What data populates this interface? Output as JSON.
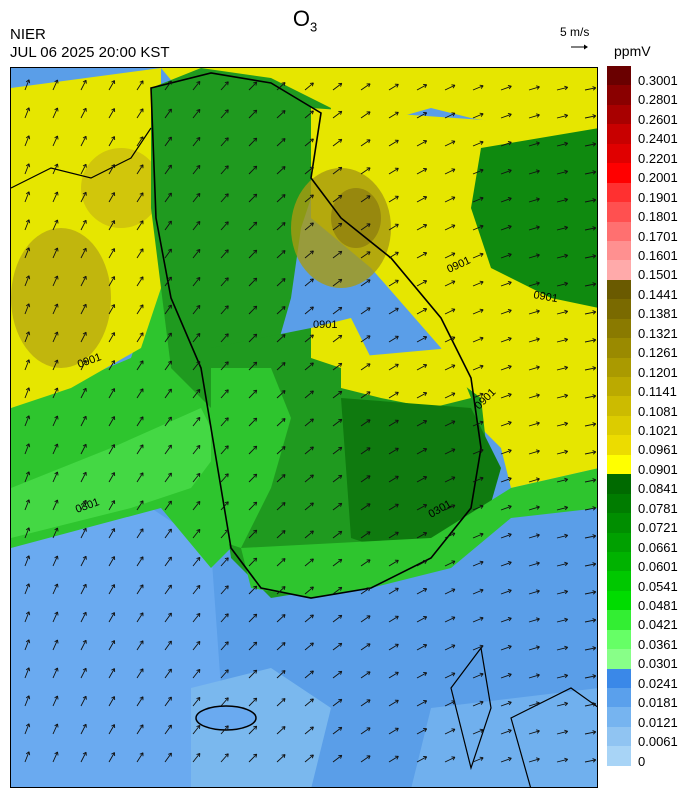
{
  "header": {
    "title_main": "O",
    "title_sub": "3",
    "org": "NIER",
    "datetime": "JUL 06 2025 20:00 KST",
    "wind_scale_label": "5 m/s",
    "units": "ppmV"
  },
  "map": {
    "region": "Korean Peninsula",
    "contour_labels": [
      "0901",
      "0901",
      "0901",
      "0901",
      "0301",
      "0301",
      "0901"
    ],
    "background_colors": {
      "sea_low": "#4a90e2",
      "sea_very_low": "#7ab8ee",
      "land_green": "#1f9a1f",
      "dark_green": "#0f7a0f",
      "yellow": "#e6e600",
      "olive": "#9a8a1a"
    },
    "wind_arrow_icon": "wind-arrow-icon"
  },
  "colorbar": {
    "labels": [
      "0.3001",
      "0.2801",
      "0.2601",
      "0.2401",
      "0.2201",
      "0.2001",
      "0.1901",
      "0.1801",
      "0.1701",
      "0.1601",
      "0.1501",
      "0.1441",
      "0.1381",
      "0.1321",
      "0.1261",
      "0.1201",
      "0.1141",
      "0.1081",
      "0.1021",
      "0.0961",
      "0.0901",
      "0.0841",
      "0.0781",
      "0.0721",
      "0.0661",
      "0.0601",
      "0.0541",
      "0.0481",
      "0.0421",
      "0.0361",
      "0.0301",
      "0.0241",
      "0.0181",
      "0.0121",
      "0.0061",
      "0"
    ],
    "colors": [
      "#6a0000",
      "#8a0000",
      "#a80000",
      "#c80000",
      "#e00000",
      "#ff0000",
      "#ff3030",
      "#ff5050",
      "#ff7070",
      "#ff9090",
      "#ffaaaa",
      "#6a5a00",
      "#7a6a00",
      "#8a7a00",
      "#9a8a00",
      "#aa9a00",
      "#bbaa00",
      "#ccbb00",
      "#dccc00",
      "#ecdc00",
      "#ffff00",
      "#006a00",
      "#007c00",
      "#008e00",
      "#00a000",
      "#00b200",
      "#00c800",
      "#00dc00",
      "#33ee33",
      "#66ff66",
      "#88ff88",
      "#3a88e8",
      "#5aa0ec",
      "#76b4f0",
      "#90c4f2",
      "#a8d4f6"
    ]
  }
}
